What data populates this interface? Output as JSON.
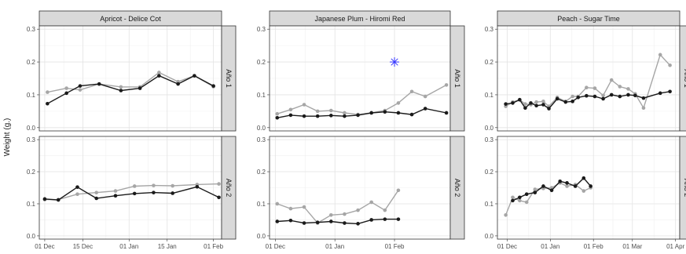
{
  "chart_data": {
    "type": "line",
    "title": "",
    "ylabel": "Weight (g.)",
    "xlabel": "",
    "grid": true,
    "colors": {
      "series_a": "#1a1a1a",
      "series_b": "#a6a6a6",
      "marker": "#3333ff"
    },
    "columns": [
      {
        "label": "Apricot - Delice Cot",
        "xlim": [
          "2021-11-29",
          "2022-02-04"
        ],
        "ticks": [
          {
            "date": "2021-12-01",
            "label": "01 Dec"
          },
          {
            "date": "2021-12-15",
            "label": "15 Dec"
          },
          {
            "date": "2022-01-01",
            "label": "01 Jan"
          },
          {
            "date": "2022-01-15",
            "label": "15 Jan"
          },
          {
            "date": "2022-02-01",
            "label": "01 Feb"
          }
        ]
      },
      {
        "label": "Japanese Plum - Hiromi Red",
        "xlim": [
          "2021-11-28",
          "2022-03-02"
        ],
        "ticks": [
          {
            "date": "2021-12-01",
            "label": "01 Dec"
          },
          {
            "date": "2022-01-01",
            "label": "01 Jan"
          },
          {
            "date": "2022-02-01",
            "label": "01 Feb"
          }
        ]
      },
      {
        "label": "Peach - Sugar Time",
        "xlim": [
          "2021-11-24",
          "2022-04-04"
        ],
        "ticks": [
          {
            "date": "2021-12-01",
            "label": "01 Dec"
          },
          {
            "date": "2022-01-01",
            "label": "01 Jan"
          },
          {
            "date": "2022-02-01",
            "label": "01 Feb"
          },
          {
            "date": "2022-03-01",
            "label": "01 Mar"
          },
          {
            "date": "2022-04-01",
            "label": "01 Apr"
          }
        ]
      }
    ],
    "rows": [
      {
        "label": "Año 1",
        "ylim": [
          -0.01,
          0.31
        ],
        "yticks": [
          {
            "value": 0,
            "label": "0.0"
          },
          {
            "value": 0.1,
            "label": "0.1"
          },
          {
            "value": 0.2,
            "label": "0.2"
          },
          {
            "value": 0.3,
            "label": "0.3"
          }
        ]
      },
      {
        "label": "Año 2",
        "ylim": [
          -0.01,
          0.31
        ],
        "yticks": [
          {
            "value": 0,
            "label": "0.0"
          },
          {
            "value": 0.1,
            "label": "0.1"
          },
          {
            "value": 0.2,
            "label": "0.2"
          },
          {
            "value": 0.3,
            "label": "0.3"
          }
        ]
      }
    ],
    "panels": [
      {
        "column": 0,
        "row": 0,
        "series": [
          {
            "color": "series_b",
            "points": [
              [
                "2021-12-02",
                0.108
              ],
              [
                "2021-12-09",
                0.12
              ],
              [
                "2021-12-14",
                0.115
              ],
              [
                "2021-12-21",
                0.133
              ],
              [
                "2021-12-29",
                0.124
              ],
              [
                "2022-01-05",
                0.124
              ],
              [
                "2022-01-12",
                0.168
              ],
              [
                "2022-01-19",
                0.14
              ],
              [
                "2022-01-25",
                0.158
              ],
              [
                "2022-02-01",
                0.125
              ]
            ]
          },
          {
            "color": "series_a",
            "points": [
              [
                "2021-12-02",
                0.073
              ],
              [
                "2021-12-09",
                0.105
              ],
              [
                "2021-12-14",
                0.127
              ],
              [
                "2021-12-21",
                0.133
              ],
              [
                "2021-12-29",
                0.113
              ],
              [
                "2022-01-05",
                0.12
              ],
              [
                "2022-01-12",
                0.158
              ],
              [
                "2022-01-19",
                0.133
              ],
              [
                "2022-01-25",
                0.158
              ],
              [
                "2022-02-01",
                0.127
              ]
            ]
          }
        ]
      },
      {
        "column": 1,
        "row": 0,
        "series": [
          {
            "color": "series_b",
            "points": [
              [
                "2021-12-02",
                0.042
              ],
              [
                "2021-12-09",
                0.055
              ],
              [
                "2021-12-16",
                0.07
              ],
              [
                "2021-12-23",
                0.05
              ],
              [
                "2021-12-30",
                0.052
              ],
              [
                "2022-01-06",
                0.045
              ],
              [
                "2022-01-13",
                0.04
              ],
              [
                "2022-01-20",
                0.045
              ],
              [
                "2022-01-27",
                0.052
              ],
              [
                "2022-02-03",
                0.075
              ],
              [
                "2022-02-10",
                0.11
              ],
              [
                "2022-02-17",
                0.095
              ],
              [
                "2022-02-28",
                0.13
              ]
            ]
          },
          {
            "color": "series_a",
            "points": [
              [
                "2021-12-02",
                0.03
              ],
              [
                "2021-12-09",
                0.038
              ],
              [
                "2021-12-16",
                0.035
              ],
              [
                "2021-12-23",
                0.035
              ],
              [
                "2021-12-30",
                0.037
              ],
              [
                "2022-01-06",
                0.035
              ],
              [
                "2022-01-13",
                0.038
              ],
              [
                "2022-01-20",
                0.045
              ],
              [
                "2022-01-27",
                0.048
              ],
              [
                "2022-02-03",
                0.045
              ],
              [
                "2022-02-10",
                0.04
              ],
              [
                "2022-02-17",
                0.058
              ],
              [
                "2022-02-28",
                0.045
              ]
            ]
          },
          {
            "color": "marker",
            "marker": "asterisk",
            "points": [
              [
                "2022-02-01",
                0.2
              ]
            ]
          }
        ]
      },
      {
        "column": 2,
        "row": 0,
        "series": [
          {
            "color": "series_b",
            "points": [
              [
                "2021-11-30",
                0.065
              ],
              [
                "2021-12-05",
                0.078
              ],
              [
                "2021-12-10",
                0.085
              ],
              [
                "2021-12-14",
                0.072
              ],
              [
                "2021-12-18",
                0.07
              ],
              [
                "2021-12-22",
                0.078
              ],
              [
                "2021-12-27",
                0.08
              ],
              [
                "2021-12-31",
                0.065
              ],
              [
                "2022-01-06",
                0.092
              ],
              [
                "2022-01-12",
                0.08
              ],
              [
                "2022-01-17",
                0.095
              ],
              [
                "2022-01-21",
                0.095
              ],
              [
                "2022-01-27",
                0.122
              ],
              [
                "2022-02-02",
                0.12
              ],
              [
                "2022-02-08",
                0.098
              ],
              [
                "2022-02-14",
                0.145
              ],
              [
                "2022-02-20",
                0.125
              ],
              [
                "2022-02-26",
                0.118
              ],
              [
                "2022-03-03",
                0.103
              ],
              [
                "2022-03-09",
                0.06
              ],
              [
                "2022-03-21",
                0.222
              ],
              [
                "2022-03-28",
                0.19
              ]
            ]
          },
          {
            "color": "series_a",
            "points": [
              [
                "2021-11-30",
                0.072
              ],
              [
                "2021-12-05",
                0.075
              ],
              [
                "2021-12-10",
                0.085
              ],
              [
                "2021-12-14",
                0.06
              ],
              [
                "2021-12-18",
                0.075
              ],
              [
                "2021-12-22",
                0.067
              ],
              [
                "2021-12-27",
                0.07
              ],
              [
                "2021-12-31",
                0.058
              ],
              [
                "2022-01-06",
                0.088
              ],
              [
                "2022-01-12",
                0.078
              ],
              [
                "2022-01-17",
                0.08
              ],
              [
                "2022-01-21",
                0.092
              ],
              [
                "2022-01-27",
                0.097
              ],
              [
                "2022-02-02",
                0.095
              ],
              [
                "2022-02-08",
                0.088
              ],
              [
                "2022-02-14",
                0.1
              ],
              [
                "2022-02-20",
                0.095
              ],
              [
                "2022-02-26",
                0.1
              ],
              [
                "2022-03-03",
                0.098
              ],
              [
                "2022-03-09",
                0.09
              ],
              [
                "2022-03-21",
                0.105
              ],
              [
                "2022-03-28",
                0.11
              ]
            ]
          }
        ]
      },
      {
        "column": 0,
        "row": 1,
        "series": [
          {
            "color": "series_b",
            "points": [
              [
                "2021-12-01",
                0.113
              ],
              [
                "2021-12-06",
                0.113
              ],
              [
                "2021-12-13",
                0.13
              ],
              [
                "2021-12-20",
                0.135
              ],
              [
                "2021-12-27",
                0.14
              ],
              [
                "2022-01-03",
                0.155
              ],
              [
                "2022-01-10",
                0.157
              ],
              [
                "2022-01-17",
                0.156
              ],
              [
                "2022-01-26",
                0.16
              ],
              [
                "2022-02-03",
                0.162
              ]
            ]
          },
          {
            "color": "series_a",
            "points": [
              [
                "2021-12-01",
                0.115
              ],
              [
                "2021-12-06",
                0.112
              ],
              [
                "2021-12-13",
                0.152
              ],
              [
                "2021-12-20",
                0.117
              ],
              [
                "2021-12-27",
                0.125
              ],
              [
                "2022-01-03",
                0.132
              ],
              [
                "2022-01-10",
                0.135
              ],
              [
                "2022-01-17",
                0.133
              ],
              [
                "2022-01-26",
                0.153
              ],
              [
                "2022-02-03",
                0.12
              ]
            ]
          }
        ]
      },
      {
        "column": 1,
        "row": 1,
        "series": [
          {
            "color": "series_b",
            "points": [
              [
                "2021-12-02",
                0.1
              ],
              [
                "2021-12-09",
                0.085
              ],
              [
                "2021-12-16",
                0.09
              ],
              [
                "2021-12-23",
                0.04
              ],
              [
                "2021-12-30",
                0.065
              ],
              [
                "2022-01-06",
                0.068
              ],
              [
                "2022-01-13",
                0.08
              ],
              [
                "2022-01-20",
                0.105
              ],
              [
                "2022-01-27",
                0.08
              ],
              [
                "2022-02-03",
                0.142
              ]
            ]
          },
          {
            "color": "series_a",
            "points": [
              [
                "2021-12-02",
                0.045
              ],
              [
                "2021-12-09",
                0.048
              ],
              [
                "2021-12-16",
                0.04
              ],
              [
                "2021-12-23",
                0.042
              ],
              [
                "2021-12-30",
                0.045
              ],
              [
                "2022-01-06",
                0.04
              ],
              [
                "2022-01-13",
                0.038
              ],
              [
                "2022-01-20",
                0.05
              ],
              [
                "2022-01-27",
                0.052
              ],
              [
                "2022-02-03",
                0.052
              ]
            ]
          }
        ]
      },
      {
        "column": 2,
        "row": 1,
        "series": [
          {
            "color": "series_b",
            "points": [
              [
                "2021-11-30",
                0.065
              ],
              [
                "2021-12-05",
                0.12
              ],
              [
                "2021-12-10",
                0.11
              ],
              [
                "2021-12-15",
                0.105
              ],
              [
                "2021-12-21",
                0.145
              ],
              [
                "2021-12-27",
                0.148
              ],
              [
                "2022-01-02",
                0.15
              ],
              [
                "2022-01-08",
                0.165
              ],
              [
                "2022-01-13",
                0.155
              ],
              [
                "2022-01-19",
                0.16
              ],
              [
                "2022-01-25",
                0.14
              ],
              [
                "2022-01-30",
                0.15
              ]
            ]
          },
          {
            "color": "series_a",
            "points": [
              [
                "2021-12-05",
                0.11
              ],
              [
                "2021-12-10",
                0.12
              ],
              [
                "2021-12-15",
                0.13
              ],
              [
                "2021-12-21",
                0.135
              ],
              [
                "2021-12-27",
                0.155
              ],
              [
                "2022-01-02",
                0.142
              ],
              [
                "2022-01-08",
                0.17
              ],
              [
                "2022-01-13",
                0.165
              ],
              [
                "2022-01-19",
                0.155
              ],
              [
                "2022-01-25",
                0.18
              ],
              [
                "2022-01-30",
                0.155
              ]
            ]
          }
        ]
      }
    ]
  }
}
